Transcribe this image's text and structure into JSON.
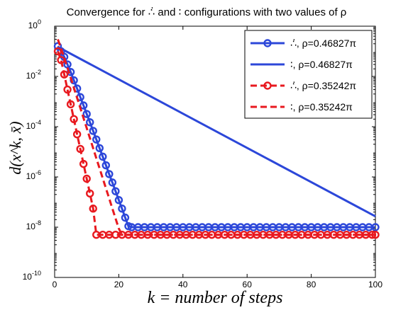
{
  "chart_data": {
    "type": "line",
    "title": "Convergence for ∴̇ and ∶ configurations with two values of ρ",
    "xlabel": "k = number of steps",
    "ylabel": "d(x^k, x̄)",
    "xlim": [
      0,
      100
    ],
    "ylim_log10": [
      -10,
      0
    ],
    "yscale": "log",
    "xticks": [
      0,
      20,
      40,
      60,
      80,
      100
    ],
    "yticks": [
      "10^0",
      "10^-2",
      "10^-4",
      "10^-6",
      "10^-8",
      "10^-10"
    ],
    "legend_position": "top-right",
    "series": [
      {
        "name": "∴̇, ρ=0.46827π",
        "color": "#2c47d9",
        "style": "solid-circles",
        "points": [
          [
            1,
            0.16
          ],
          [
            2,
            0.1
          ],
          [
            3,
            0.06
          ],
          [
            4,
            0.03
          ],
          [
            5,
            0.015
          ],
          [
            6,
            0.007
          ],
          [
            7,
            0.0033
          ],
          [
            8,
            0.0015
          ],
          [
            9,
            0.0007
          ],
          [
            10,
            0.00032
          ],
          [
            11,
            0.00015
          ],
          [
            12,
            6.8e-05
          ],
          [
            13,
            3.1e-05
          ],
          [
            14,
            1.4e-05
          ],
          [
            15,
            6.4e-06
          ],
          [
            16,
            2.9e-06
          ],
          [
            17,
            1.3e-06
          ],
          [
            18,
            6e-07
          ],
          [
            19,
            2.7e-07
          ],
          [
            20,
            1.2e-07
          ],
          [
            21,
            5.5e-08
          ],
          [
            22,
            2.4e-08
          ],
          [
            23,
            1.1e-08
          ],
          [
            24,
            1e-08
          ],
          [
            100,
            1e-08
          ]
        ]
      },
      {
        "name": "∶, ρ=0.46827π",
        "color": "#2c47d9",
        "style": "solid",
        "points": [
          [
            1,
            0.15
          ],
          [
            100,
            2.7e-08
          ]
        ]
      },
      {
        "name": "∴̇, ρ=0.35242π",
        "color": "#e8191f",
        "style": "dashed-circles",
        "points": [
          [
            1,
            0.1
          ],
          [
            2,
            0.045
          ],
          [
            3,
            0.012
          ],
          [
            4,
            0.003
          ],
          [
            5,
            0.00078
          ],
          [
            6,
            0.0002
          ],
          [
            7,
            5e-05
          ],
          [
            8,
            1.3e-05
          ],
          [
            9,
            3.3e-06
          ],
          [
            10,
            8.5e-07
          ],
          [
            11,
            2.2e-07
          ],
          [
            12,
            5.5e-08
          ],
          [
            13,
            5e-09
          ],
          [
            100,
            5e-09
          ]
        ]
      },
      {
        "name": "∶, ρ=0.35242π",
        "color": "#e8191f",
        "style": "dashed",
        "points": [
          [
            1,
            0.3
          ],
          [
            2,
            0.13
          ],
          [
            3,
            0.055
          ],
          [
            4,
            0.022
          ],
          [
            5,
            0.009
          ],
          [
            6,
            0.0035
          ],
          [
            7,
            0.0014
          ],
          [
            8,
            0.00056
          ],
          [
            9,
            0.00022
          ],
          [
            10,
            8.8e-05
          ],
          [
            11,
            3.5e-05
          ],
          [
            12,
            1.4e-05
          ],
          [
            13,
            5.5e-06
          ],
          [
            14,
            2.2e-06
          ],
          [
            15,
            8.8e-07
          ],
          [
            16,
            3.5e-07
          ],
          [
            17,
            1.4e-07
          ],
          [
            18,
            5.5e-08
          ],
          [
            19,
            2.2e-08
          ],
          [
            20,
            8.8e-09
          ],
          [
            21,
            5e-09
          ],
          [
            100,
            5e-09
          ]
        ]
      }
    ]
  }
}
